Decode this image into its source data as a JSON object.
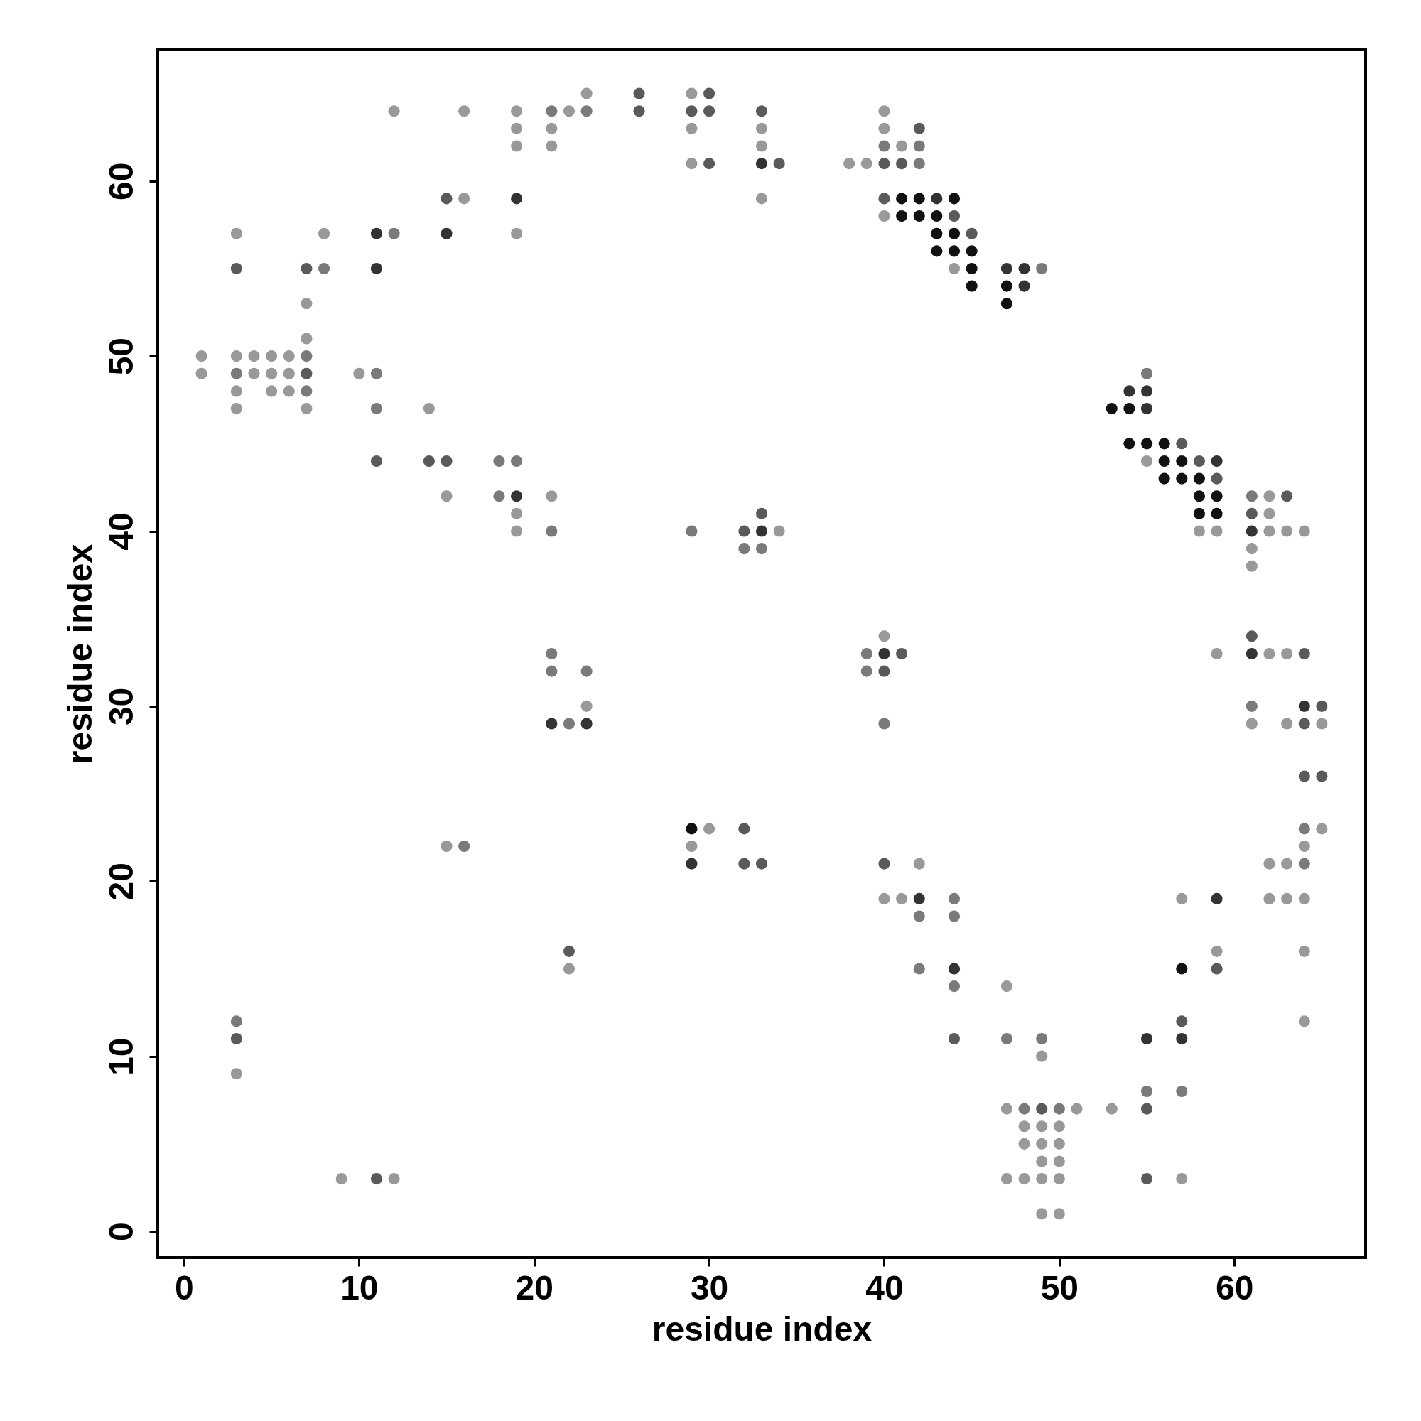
{
  "chart_data": {
    "type": "scatter",
    "xlabel": "residue index",
    "ylabel": "residue index",
    "xlim": [
      -1.5,
      67.5
    ],
    "ylim": [
      -1.5,
      67.5
    ],
    "xticks": [
      0,
      10,
      20,
      30,
      40,
      50,
      60
    ],
    "yticks": [
      0,
      10,
      20,
      30,
      40,
      50,
      60
    ],
    "grid": false,
    "marker": "circle",
    "x": [
      1,
      1,
      3,
      3,
      3,
      3,
      3,
      3,
      3,
      3,
      3,
      4,
      4,
      5,
      5,
      5,
      6,
      6,
      6,
      7,
      7,
      7,
      7,
      7,
      7,
      7,
      8,
      8,
      9,
      10,
      11,
      11,
      11,
      11,
      11,
      11,
      12,
      12,
      12,
      14,
      14,
      15,
      15,
      15,
      15,
      15,
      16,
      16,
      16,
      18,
      18,
      19,
      19,
      19,
      19,
      19,
      19,
      19,
      19,
      19,
      21,
      21,
      21,
      21,
      21,
      21,
      21,
      21,
      22,
      22,
      22,
      22,
      23,
      23,
      23,
      23,
      23,
      26,
      26,
      29,
      29,
      29,
      29,
      29,
      29,
      29,
      29,
      30,
      30,
      30,
      30,
      32,
      32,
      32,
      32,
      33,
      33,
      33,
      33,
      33,
      33,
      33,
      33,
      33,
      34,
      34,
      38,
      39,
      39,
      39,
      40,
      40,
      40,
      40,
      40,
      40,
      40,
      40,
      40,
      40,
      40,
      40,
      41,
      41,
      41,
      41,
      41,
      41,
      42,
      42,
      42,
      42,
      42,
      42,
      42,
      42,
      42,
      43,
      43,
      43,
      43,
      44,
      44,
      44,
      44,
      44,
      44,
      44,
      44,
      44,
      44,
      45,
      45,
      45,
      45,
      47,
      47,
      47,
      47,
      47,
      47,
      47,
      48,
      48,
      48,
      48,
      48,
      48,
      49,
      49,
      49,
      49,
      49,
      49,
      49,
      49,
      49,
      50,
      50,
      50,
      50,
      50,
      50,
      51,
      53,
      53,
      54,
      54,
      54,
      55,
      55,
      55,
      55,
      55,
      55,
      55,
      55,
      55,
      56,
      56,
      56,
      57,
      57,
      57,
      57,
      57,
      57,
      57,
      57,
      57,
      58,
      58,
      58,
      58,
      58,
      59,
      59,
      59,
      59,
      59,
      59,
      59,
      59,
      59,
      61,
      61,
      61,
      61,
      61,
      61,
      61,
      61,
      61,
      62,
      62,
      62,
      62,
      62,
      62,
      63,
      63,
      63,
      63,
      63,
      63,
      64,
      64,
      64,
      64,
      64,
      64,
      64,
      64,
      64,
      64,
      64,
      65,
      65,
      65,
      65
    ],
    "values": [
      50,
      49,
      57,
      55,
      50,
      49,
      48,
      47,
      12,
      11,
      9,
      50,
      49,
      50,
      49,
      48,
      50,
      49,
      48,
      55,
      53,
      51,
      50,
      49,
      48,
      47,
      57,
      55,
      3,
      49,
      57,
      55,
      49,
      47,
      44,
      3,
      64,
      57,
      3,
      47,
      44,
      59,
      57,
      44,
      42,
      22,
      64,
      59,
      22,
      44,
      42,
      64,
      63,
      62,
      59,
      57,
      44,
      42,
      41,
      40,
      64,
      63,
      62,
      42,
      40,
      33,
      32,
      29,
      64,
      29,
      16,
      15,
      65,
      64,
      32,
      30,
      29,
      65,
      64,
      65,
      64,
      63,
      61,
      40,
      23,
      22,
      21,
      65,
      64,
      61,
      23,
      40,
      39,
      23,
      21,
      64,
      63,
      62,
      61,
      59,
      41,
      40,
      39,
      21,
      61,
      40,
      61,
      61,
      33,
      32,
      64,
      63,
      62,
      61,
      59,
      58,
      34,
      33,
      32,
      29,
      21,
      19,
      62,
      61,
      59,
      58,
      33,
      19,
      63,
      62,
      61,
      59,
      58,
      21,
      19,
      18,
      15,
      59,
      58,
      57,
      56,
      59,
      58,
      57,
      56,
      55,
      19,
      18,
      15,
      14,
      11,
      57,
      56,
      55,
      54,
      55,
      54,
      53,
      14,
      11,
      7,
      3,
      55,
      54,
      7,
      6,
      5,
      3,
      55,
      11,
      10,
      7,
      6,
      5,
      4,
      3,
      1,
      7,
      6,
      5,
      4,
      3,
      1,
      7,
      47,
      7,
      48,
      47,
      45,
      49,
      48,
      47,
      45,
      44,
      11,
      8,
      7,
      3,
      45,
      44,
      43,
      45,
      44,
      43,
      19,
      15,
      12,
      11,
      8,
      3,
      44,
      43,
      42,
      41,
      40,
      44,
      43,
      42,
      41,
      40,
      33,
      19,
      16,
      15,
      42,
      41,
      40,
      39,
      38,
      34,
      33,
      30,
      29,
      42,
      41,
      40,
      33,
      21,
      19,
      42,
      40,
      33,
      29,
      21,
      19,
      40,
      33,
      30,
      29,
      26,
      23,
      22,
      21,
      19,
      16,
      12,
      30,
      29,
      26,
      23
    ],
    "colors": [
      "#999999",
      "#999999",
      "#999999",
      "#5a5a5a",
      "#999999",
      "#7a7a7a",
      "#999999",
      "#999999",
      "#7a7a7a",
      "#5a5a5a",
      "#999999",
      "#999999",
      "#999999",
      "#999999",
      "#999999",
      "#999999",
      "#999999",
      "#999999",
      "#999999",
      "#5a5a5a",
      "#999999",
      "#999999",
      "#7a7a7a",
      "#5a5a5a",
      "#7a7a7a",
      "#999999",
      "#999999",
      "#7a7a7a",
      "#999999",
      "#999999",
      "#333333",
      "#333333",
      "#7a7a7a",
      "#7a7a7a",
      "#5a5a5a",
      "#5a5a5a",
      "#999999",
      "#7a7a7a",
      "#999999",
      "#999999",
      "#5a5a5a",
      "#5a5a5a",
      "#333333",
      "#5a5a5a",
      "#999999",
      "#999999",
      "#999999",
      "#999999",
      "#7a7a7a",
      "#7a7a7a",
      "#7a7a7a",
      "#999999",
      "#999999",
      "#999999",
      "#333333",
      "#999999",
      "#7a7a7a",
      "#333333",
      "#999999",
      "#999999",
      "#7a7a7a",
      "#999999",
      "#999999",
      "#999999",
      "#7a7a7a",
      "#7a7a7a",
      "#7a7a7a",
      "#333333",
      "#999999",
      "#7a7a7a",
      "#5a5a5a",
      "#999999",
      "#999999",
      "#7a7a7a",
      "#7a7a7a",
      "#999999",
      "#333333",
      "#5a5a5a",
      "#5a5a5a",
      "#999999",
      "#5a5a5a",
      "#999999",
      "#999999",
      "#7a7a7a",
      "#111111",
      "#999999",
      "#333333",
      "#5a5a5a",
      "#5a5a5a",
      "#5a5a5a",
      "#999999",
      "#5a5a5a",
      "#7a7a7a",
      "#5a5a5a",
      "#5a5a5a",
      "#5a5a5a",
      "#999999",
      "#999999",
      "#333333",
      "#999999",
      "#5a5a5a",
      "#333333",
      "#7a7a7a",
      "#5a5a5a",
      "#5a5a5a",
      "#999999",
      "#999999",
      "#999999",
      "#7a7a7a",
      "#7a7a7a",
      "#999999",
      "#999999",
      "#7a7a7a",
      "#5a5a5a",
      "#5a5a5a",
      "#999999",
      "#999999",
      "#333333",
      "#5a5a5a",
      "#7a7a7a",
      "#5a5a5a",
      "#999999",
      "#999999",
      "#5a5a5a",
      "#111111",
      "#111111",
      "#5a5a5a",
      "#999999",
      "#5a5a5a",
      "#7a7a7a",
      "#7a7a7a",
      "#111111",
      "#111111",
      "#999999",
      "#333333",
      "#7a7a7a",
      "#7a7a7a",
      "#333333",
      "#111111",
      "#111111",
      "#111111",
      "#111111",
      "#5a5a5a",
      "#111111",
      "#111111",
      "#999999",
      "#7a7a7a",
      "#7a7a7a",
      "#333333",
      "#7a7a7a",
      "#5a5a5a",
      "#5a5a5a",
      "#111111",
      "#111111",
      "#111111",
      "#333333",
      "#111111",
      "#111111",
      "#999999",
      "#7a7a7a",
      "#999999",
      "#999999",
      "#333333",
      "#333333",
      "#7a7a7a",
      "#999999",
      "#999999",
      "#999999",
      "#7a7a7a",
      "#7a7a7a",
      "#999999",
      "#5a5a5a",
      "#999999",
      "#999999",
      "#999999",
      "#999999",
      "#999999",
      "#7a7a7a",
      "#999999",
      "#999999",
      "#999999",
      "#999999",
      "#999999",
      "#999999",
      "#111111",
      "#999999",
      "#333333",
      "#111111",
      "#111111",
      "#7a7a7a",
      "#333333",
      "#333333",
      "#111111",
      "#999999",
      "#333333",
      "#7a7a7a",
      "#5a5a5a",
      "#5a5a5a",
      "#111111",
      "#111111",
      "#111111",
      "#5a5a5a",
      "#111111",
      "#111111",
      "#999999",
      "#111111",
      "#5a5a5a",
      "#333333",
      "#7a7a7a",
      "#999999",
      "#5a5a5a",
      "#111111",
      "#111111",
      "#111111",
      "#999999",
      "#333333",
      "#5a5a5a",
      "#111111",
      "#111111",
      "#999999",
      "#999999",
      "#333333",
      "#999999",
      "#5a5a5a",
      "#7a7a7a",
      "#5a5a5a",
      "#333333",
      "#999999",
      "#999999",
      "#5a5a5a",
      "#333333",
      "#7a7a7a",
      "#999999",
      "#999999",
      "#999999",
      "#999999",
      "#999999",
      "#999999",
      "#999999",
      "#5a5a5a",
      "#999999",
      "#999999",
      "#999999",
      "#999999",
      "#999999",
      "#999999",
      "#5a5a5a",
      "#333333",
      "#5a5a5a",
      "#5a5a5a",
      "#7a7a7a",
      "#999999",
      "#7a7a7a",
      "#999999",
      "#999999",
      "#999999",
      "#5a5a5a",
      "#999999",
      "#5a5a5a",
      "#999999"
    ]
  }
}
